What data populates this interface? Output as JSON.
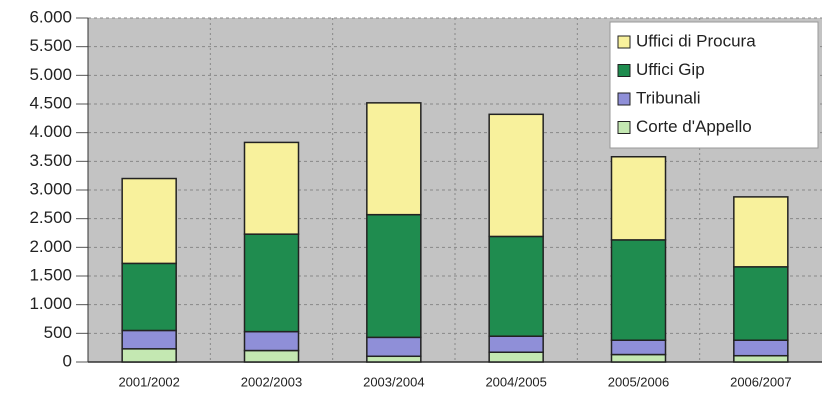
{
  "chart_data": {
    "type": "stacked_bar",
    "categories": [
      "2001/2002",
      "2002/2003",
      "2003/2004",
      "2004/2005",
      "2005/2006",
      "2006/2007"
    ],
    "series": [
      {
        "name": "Corte d'Appello",
        "color": "#c4e8b2",
        "values": [
          230,
          200,
          100,
          170,
          130,
          110
        ]
      },
      {
        "name": "Tribunali",
        "color": "#8f8fd8",
        "values": [
          320,
          330,
          330,
          280,
          250,
          270
        ]
      },
      {
        "name": "Uffici Gip",
        "color": "#1f8c4f",
        "values": [
          1170,
          1700,
          2140,
          1740,
          1750,
          1280
        ]
      },
      {
        "name": "Uffici di Procura",
        "color": "#f8f19c",
        "values": [
          1480,
          1600,
          1950,
          2130,
          1450,
          1220
        ]
      }
    ],
    "ylim": [
      0,
      6000
    ],
    "yticks": [
      0,
      500,
      {
        "value": 1000,
        "label": "1.000"
      },
      {
        "value": 1500,
        "label": "1.500"
      },
      {
        "value": 2000,
        "label": "2.000"
      },
      {
        "value": 2500,
        "label": "2.500"
      },
      {
        "value": 3000,
        "label": "3.000"
      },
      {
        "value": 3500,
        "label": "3.500"
      },
      {
        "value": 4000,
        "label": "4.000"
      },
      {
        "value": 4500,
        "label": "4.500"
      },
      {
        "value": 5000,
        "label": "5.000"
      },
      {
        "value": 5500,
        "label": "5.500"
      },
      {
        "value": 6000,
        "label": "6.000"
      }
    ],
    "grid": true,
    "legend": "top-right"
  }
}
